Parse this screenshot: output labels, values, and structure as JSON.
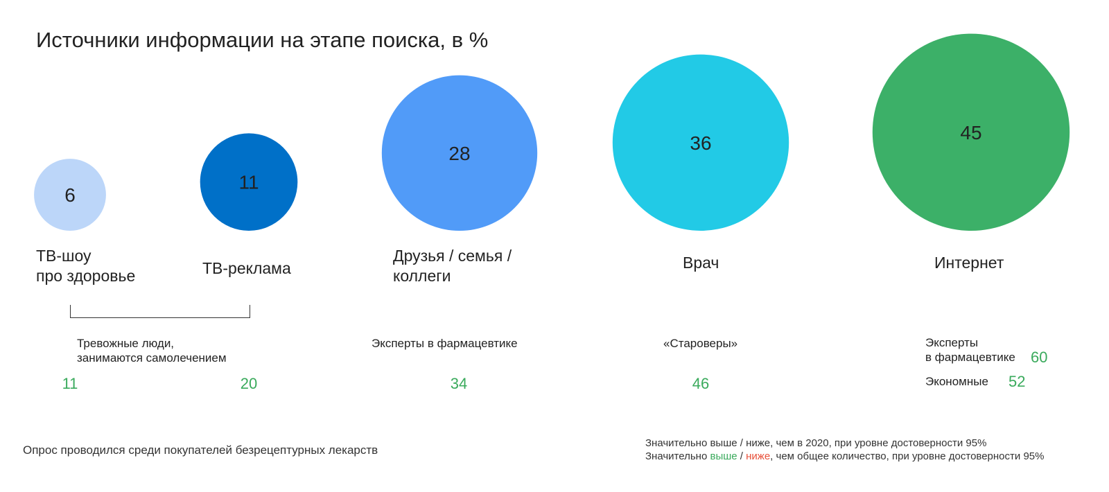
{
  "colors": {
    "text": "#222222",
    "higher": "#3aaa5c",
    "lower": "#e8503a"
  },
  "chart_data": {
    "type": "bubble",
    "title": "Источники информации на этапе поиска, в %",
    "unit": "%",
    "categories": [
      "ТВ-шоу про здоровье",
      "ТВ-реклама",
      "Друзья / семья / коллеги",
      "Врач",
      "Интернет"
    ],
    "values": [
      6,
      11,
      28,
      36,
      45
    ],
    "colors": [
      "#bcd6f9",
      "#0070c8",
      "#519bf8",
      "#22cae6",
      "#3cb068"
    ],
    "label_lines": [
      [
        "ТВ-шоу",
        "про здоровье"
      ],
      [
        "ТВ-реклама"
      ],
      [
        "Друзья / семья /",
        "коллеги"
      ],
      [
        "Врач"
      ],
      [
        "Интернет"
      ]
    ],
    "segments": {
      "anxious": {
        "label_lines": [
          "Тревожные люди,",
          "занимаются самолечением"
        ],
        "values": [
          11,
          20
        ],
        "applies_to": [
          "ТВ-шоу про здоровье",
          "ТВ-реклама"
        ]
      },
      "pharma_experts_friends": {
        "label": "Эксперты в фармацевтике",
        "value": 34,
        "applies_to": "Друзья / семья / коллеги"
      },
      "old_believers": {
        "label": "«Староверы»",
        "value": 46,
        "applies_to": "Врач"
      },
      "internet": {
        "pharma_label_lines": [
          "Эксперты",
          "в фармацевтике"
        ],
        "pharma_value": 60,
        "economy_label": "Экономные",
        "economy_value": 52,
        "applies_to": "Интернет"
      }
    }
  },
  "footnote": "Опрос проводился среди покупателей безрецептурных лекарств",
  "legend": {
    "line1": "Значительно выше / ниже, чем в 2020, при уровне достоверности 95%",
    "line2_prefix": "Значительно ",
    "line2_higher": "выше",
    "line2_sep": " / ",
    "line2_lower": "ниже",
    "line2_suffix": ", чем общее количество, при уровне достоверности 95%"
  }
}
